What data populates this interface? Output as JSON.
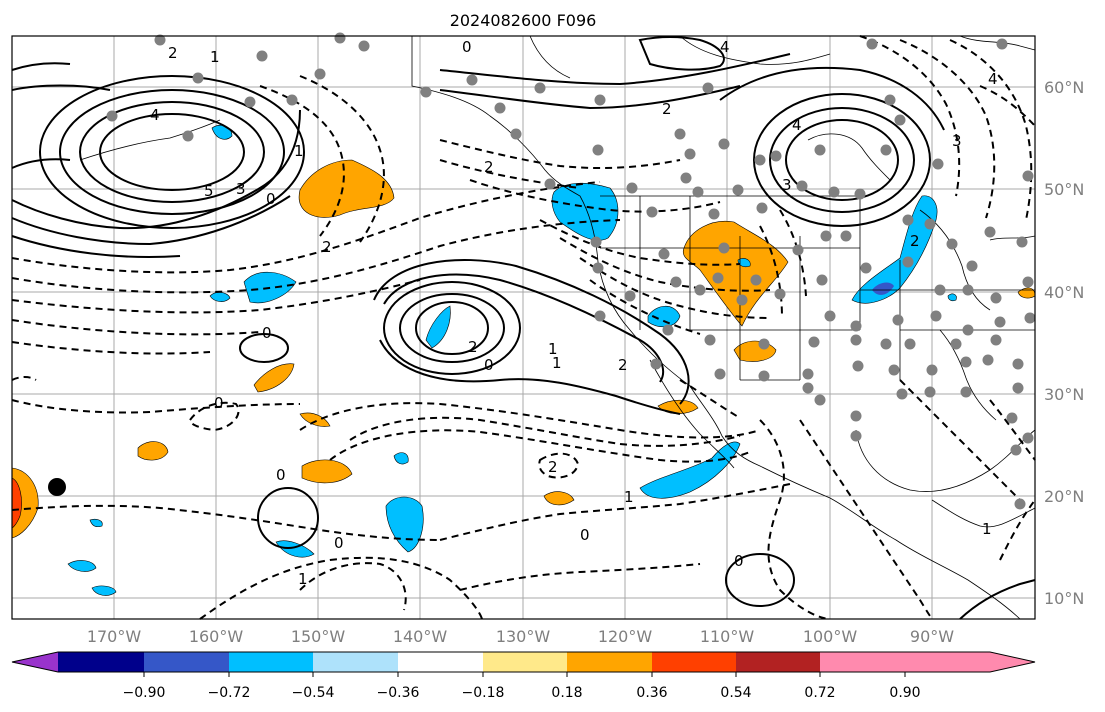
{
  "title": "2024082600 F096",
  "map": {
    "lat_labels": [
      "60°N",
      "50°N",
      "40°N",
      "30°N",
      "20°N",
      "10°N"
    ],
    "lon_labels": [
      "170°W",
      "160°W",
      "150°W",
      "140°W",
      "130°W",
      "120°W",
      "110°W",
      "100°W",
      "90°W"
    ],
    "contour_labels": [
      "4",
      "5",
      "3",
      "2",
      "1",
      "0",
      "2",
      "2",
      "1",
      "2",
      "0",
      "0",
      "0",
      "1",
      "2",
      "2",
      "0",
      "1",
      "0",
      "4",
      "4",
      "4",
      "3",
      "2",
      "2",
      "1",
      "3",
      "0",
      "1",
      "0",
      "0",
      "1"
    ]
  },
  "colorbar": {
    "ticks": [
      "−0.90",
      "−0.72",
      "−0.54",
      "−0.36",
      "−0.18",
      "0.18",
      "0.36",
      "0.54",
      "0.72",
      "0.90"
    ],
    "colors": [
      "#9933cc",
      "#00008b",
      "#3557c8",
      "#00bfff",
      "#aee2fb",
      "#ffffff",
      "#ffe98a",
      "#ffa500",
      "#ff4000",
      "#b22222",
      "#ff8aae"
    ]
  }
}
